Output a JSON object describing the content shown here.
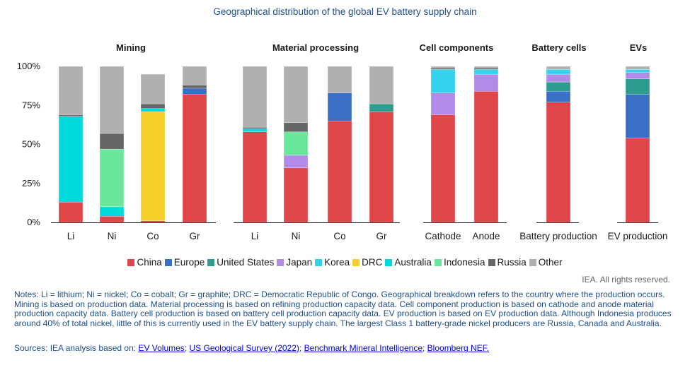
{
  "chart_data": {
    "type": "bar",
    "stacked": true,
    "title": "Geographical distribution of the global EV battery supply chain",
    "ylim": [
      0,
      100
    ],
    "yticks": [
      "0%",
      "25%",
      "50%",
      "75%",
      "100%"
    ],
    "grid": false,
    "legend_position": "bottom",
    "series_order": [
      "China",
      "Europe",
      "United States",
      "Japan",
      "Korea",
      "DRC",
      "Australia",
      "Indonesia",
      "Russia",
      "Other"
    ],
    "colors": {
      "China": "#e0454a",
      "Europe": "#3a6fc8",
      "United States": "#2e9c8e",
      "Japan": "#b28ae8",
      "Korea": "#36d1ec",
      "DRC": "#f6cf2a",
      "Australia": "#00dadb",
      "Indonesia": "#6ae79a",
      "Russia": "#666666",
      "Other": "#b0b0b0"
    },
    "groups": [
      {
        "name": "Mining",
        "categories": [
          {
            "label": "Li",
            "values": {
              "China": 13,
              "Europe": 0,
              "United States": 0,
              "Japan": 0,
              "Korea": 0,
              "DRC": 0,
              "Australia": 55,
              "Indonesia": 0,
              "Russia": 1,
              "Other": 31
            }
          },
          {
            "label": "Ni",
            "values": {
              "China": 4,
              "Europe": 0,
              "United States": 0,
              "Japan": 0,
              "Korea": 0,
              "DRC": 0,
              "Australia": 6,
              "Indonesia": 37,
              "Russia": 10,
              "Other": 43
            }
          },
          {
            "label": "Co",
            "values": {
              "China": 1,
              "Europe": 0,
              "United States": 0,
              "Japan": 0,
              "Korea": 0,
              "DRC": 70,
              "Australia": 2,
              "Indonesia": 0,
              "Russia": 3,
              "Other": 19
            }
          },
          {
            "label": "Gr",
            "values": {
              "China": 82,
              "Europe": 4,
              "United States": 0,
              "Japan": 0,
              "Korea": 0,
              "DRC": 0,
              "Australia": 0,
              "Indonesia": 0,
              "Russia": 2,
              "Other": 12
            }
          }
        ]
      },
      {
        "name": "Material processing",
        "categories": [
          {
            "label": "Li",
            "values": {
              "China": 58,
              "Europe": 0,
              "United States": 0,
              "Japan": 0,
              "Korea": 0,
              "DRC": 0,
              "Australia": 2,
              "Indonesia": 0,
              "Russia": 1,
              "Other": 39
            }
          },
          {
            "label": "Ni",
            "values": {
              "China": 35,
              "Europe": 0,
              "United States": 0,
              "Japan": 8,
              "Korea": 0,
              "DRC": 0,
              "Australia": 0,
              "Indonesia": 15,
              "Russia": 6,
              "Other": 36
            }
          },
          {
            "label": "Co",
            "values": {
              "China": 65,
              "Europe": 18,
              "United States": 0,
              "Japan": 0,
              "Korea": 0,
              "DRC": 0,
              "Australia": 0,
              "Indonesia": 0,
              "Russia": 0,
              "Other": 17
            }
          },
          {
            "label": "Gr",
            "values": {
              "China": 71,
              "Europe": 0,
              "United States": 5,
              "Japan": 0,
              "Korea": 0,
              "DRC": 0,
              "Australia": 0,
              "Indonesia": 0,
              "Russia": 0,
              "Other": 24
            }
          }
        ]
      },
      {
        "name": "Cell components",
        "categories": [
          {
            "label": "Cathode",
            "values": {
              "China": 69,
              "Europe": 0,
              "United States": 0,
              "Japan": 14,
              "Korea": 15,
              "DRC": 0,
              "Australia": 0,
              "Indonesia": 0,
              "Russia": 1,
              "Other": 1
            }
          },
          {
            "label": "Anode",
            "values": {
              "China": 84,
              "Europe": 0,
              "United States": 0,
              "Japan": 11,
              "Korea": 3,
              "DRC": 0,
              "Australia": 0,
              "Indonesia": 0,
              "Russia": 1,
              "Other": 1
            }
          }
        ]
      },
      {
        "name": "Battery cells",
        "categories": [
          {
            "label": "Battery production",
            "values": {
              "China": 77,
              "Europe": 7,
              "United States": 6,
              "Japan": 5,
              "Korea": 3,
              "DRC": 0,
              "Australia": 0,
              "Indonesia": 0,
              "Russia": 0,
              "Other": 2
            }
          }
        ]
      },
      {
        "name": "EVs",
        "categories": [
          {
            "label": "EV production",
            "values": {
              "China": 54,
              "Europe": 28,
              "United States": 10,
              "Japan": 4,
              "Korea": 2,
              "DRC": 0,
              "Australia": 0,
              "Indonesia": 0,
              "Russia": 0,
              "Other": 2
            }
          }
        ]
      }
    ]
  },
  "footer": {
    "credit": "IEA. All rights reserved.",
    "notes": "Notes: Li = lithium; Ni = nickel; Co = cobalt; Gr = graphite; DRC = Democratic Republic of Congo. Geographical breakdown refers to the country where the production occurs. Mining is based on production data. Material processing is based on refining production capacity data. Cell component production is based on cathode and anode material production capacity data. Battery cell production is based on battery cell production capacity data. EV production is based on EV production data. Although Indonesia produces around 40% of total nickel, little of this is currently used in the EV battery supply chain. The largest Class 1 battery-grade nickel producers are Russia, Canada and Australia.",
    "sources_prefix": "Sources: IEA analysis based on: ",
    "sources": [
      "EV Volumes",
      "US Geological Survey (2022)",
      "Benchmark Mineral Intelligence",
      "Bloomberg NEF."
    ]
  }
}
